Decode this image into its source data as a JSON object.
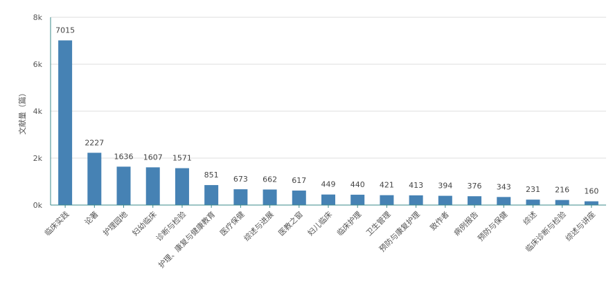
{
  "chart_data": {
    "type": "bar",
    "title": "",
    "ylabel": "文献量（篇）",
    "xlabel": "",
    "ylim": [
      0,
      8000
    ],
    "yticks": [
      {
        "value": 0,
        "label": "0k"
      },
      {
        "value": 2000,
        "label": "2k"
      },
      {
        "value": 4000,
        "label": "4k"
      },
      {
        "value": 6000,
        "label": "6k"
      },
      {
        "value": 8000,
        "label": "8k"
      }
    ],
    "grid": true,
    "legend": "none",
    "bar_color": "#4682b4",
    "categories": [
      "临床实践",
      "论著",
      "护理园地",
      "妇幼临床",
      "诊断与检验",
      "护理、康复与健康教育",
      "医疗保健",
      "综述与进展",
      "医教之窗",
      "妇儿临床",
      "临床护理",
      "卫生管理",
      "预防与康复护理",
      "致作者",
      "病例报告",
      "预防与保健",
      "综述",
      "临床诊断与检验",
      "综述与讲座"
    ],
    "values": [
      7015,
      2227,
      1636,
      1607,
      1571,
      851,
      673,
      662,
      617,
      449,
      440,
      421,
      413,
      394,
      376,
      343,
      231,
      216,
      160
    ]
  }
}
